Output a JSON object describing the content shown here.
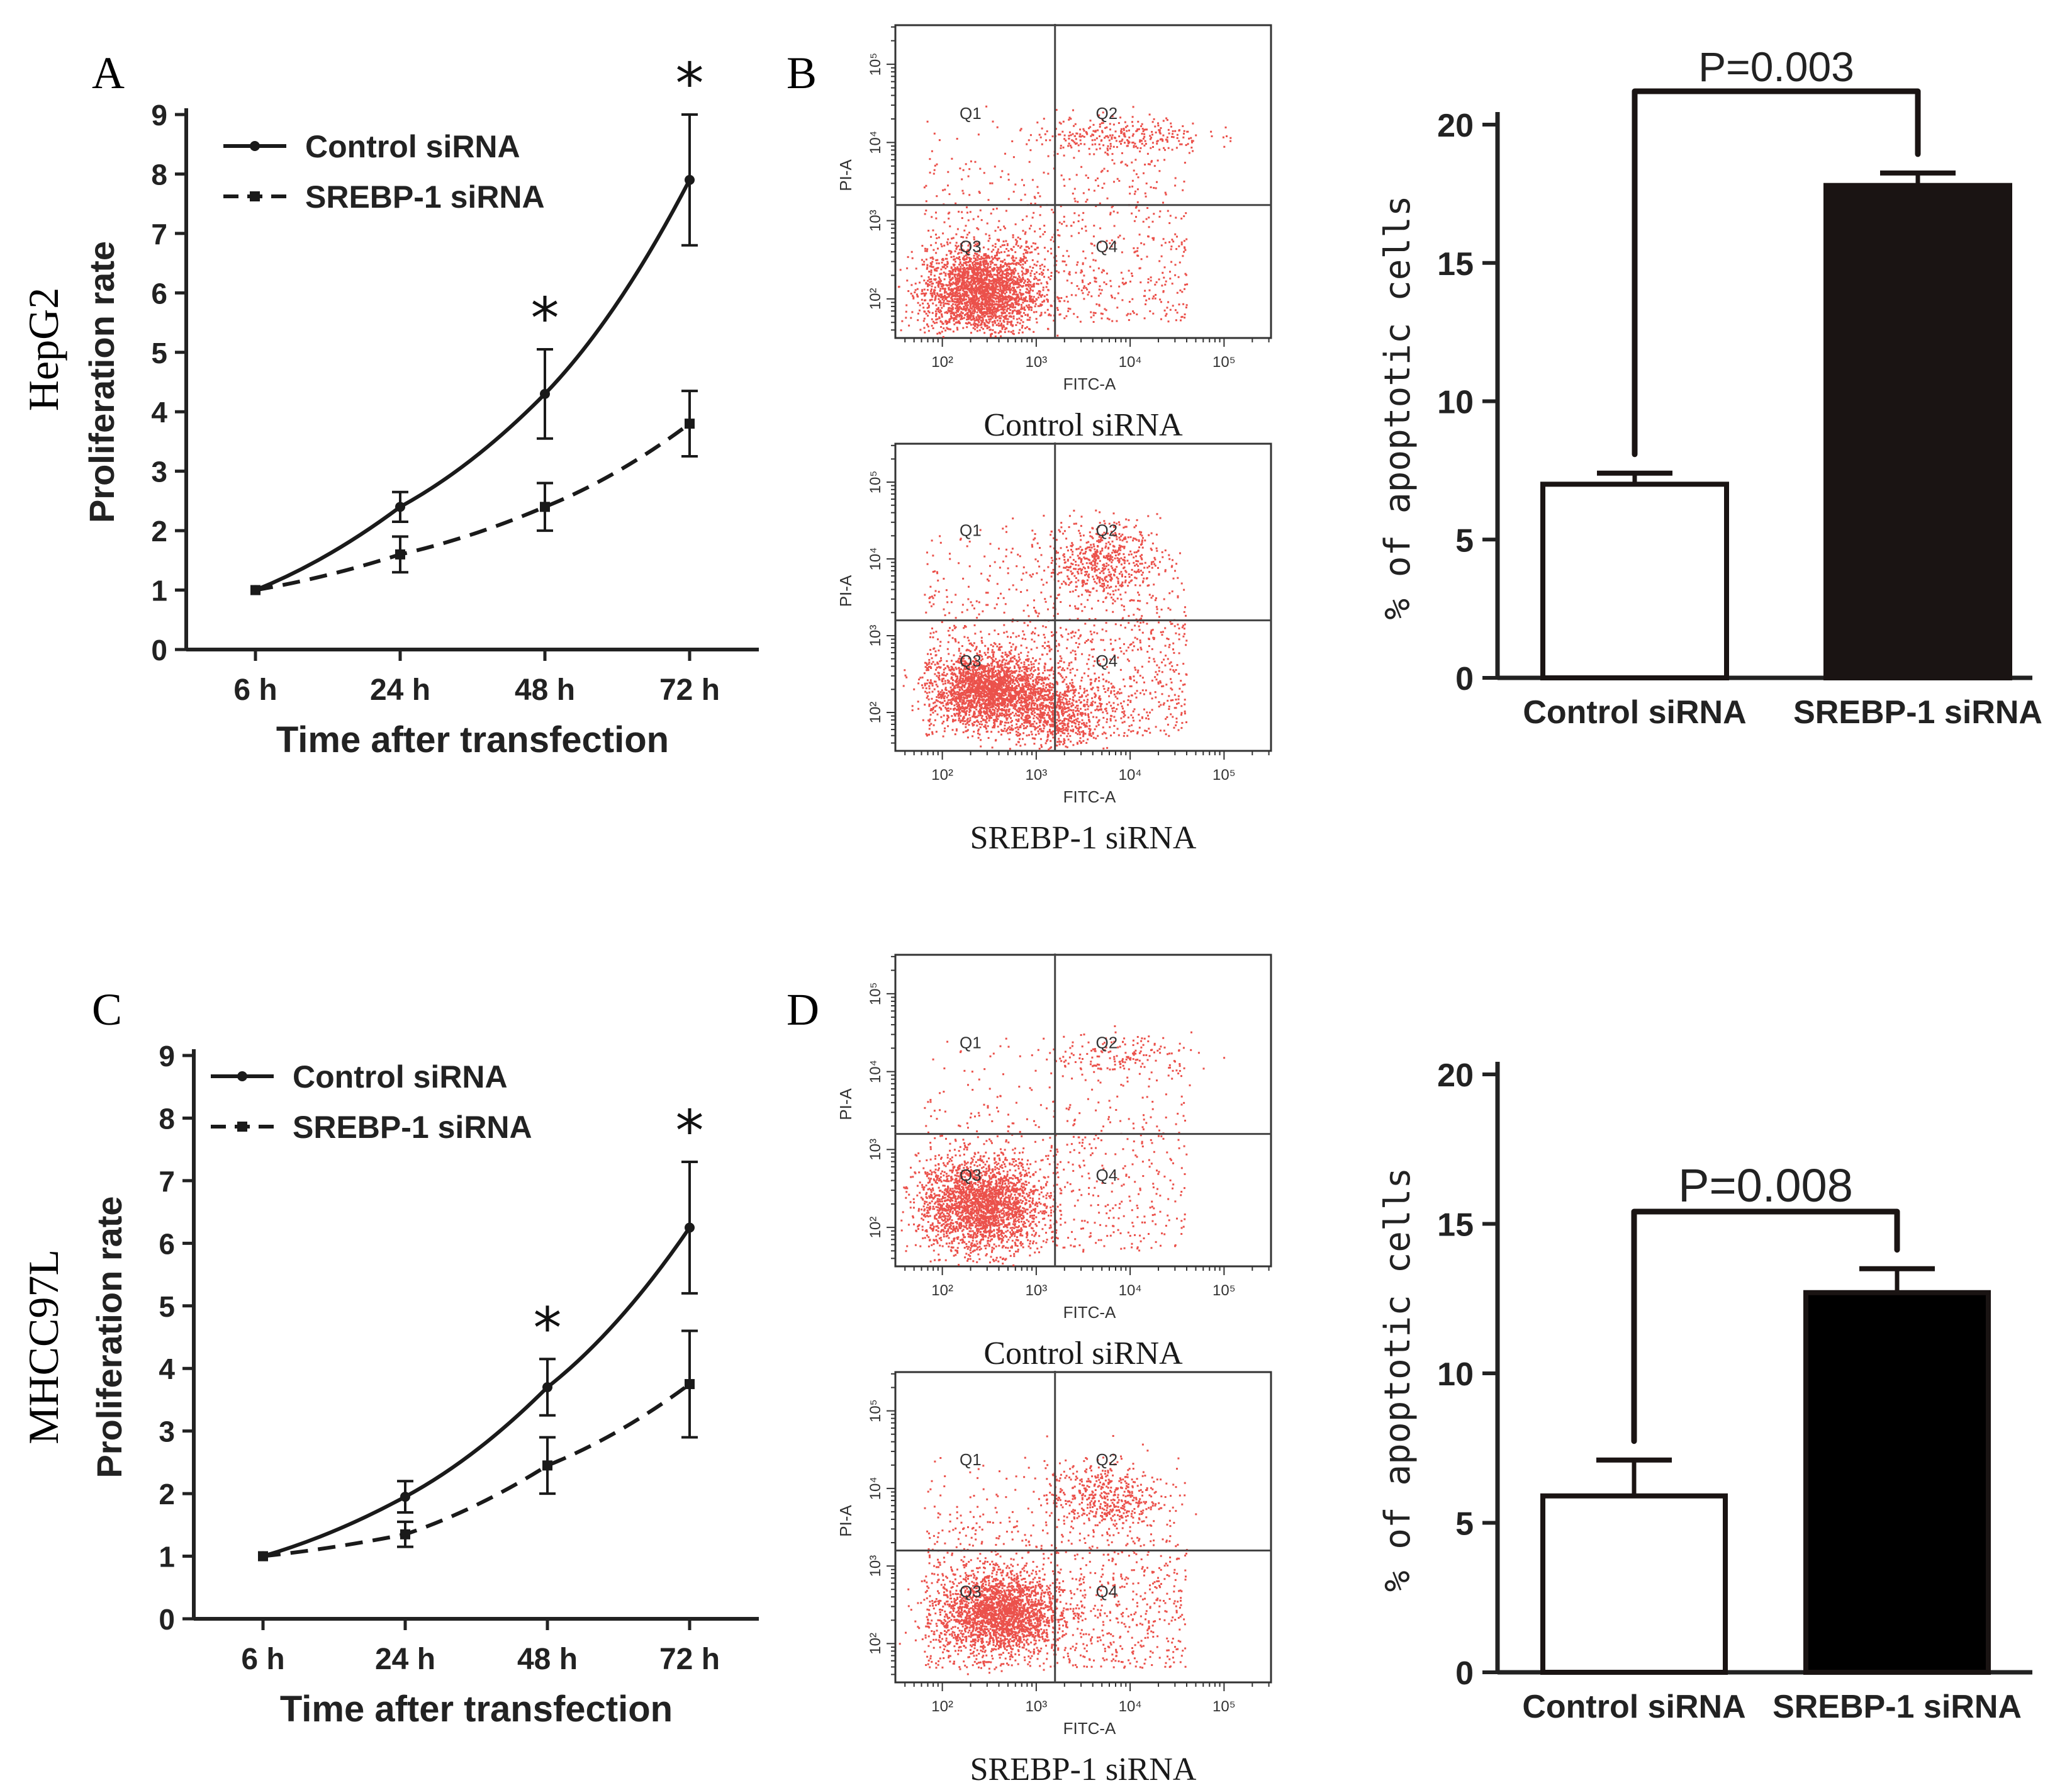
{
  "panel_labels": [
    "A",
    "B",
    "C",
    "D"
  ],
  "row_labels": [
    "HepG2",
    "MHCC97L"
  ],
  "chart_data": [
    {
      "type": "line",
      "panel": "A",
      "title": "",
      "xlabel": "Time after transfection",
      "ylabel": "Proliferation rate",
      "categories": [
        "6 h",
        "24 h",
        "48 h",
        "72 h"
      ],
      "ylim": [
        0,
        9
      ],
      "yticks": [
        "0",
        "1",
        "2",
        "3",
        "4",
        "5",
        "6",
        "7",
        "8",
        "9"
      ],
      "series": [
        {
          "name": "Control siRNA",
          "values": [
            1.0,
            2.4,
            4.3,
            7.9
          ],
          "errors": [
            0.0,
            0.25,
            0.75,
            1.1
          ],
          "dash": false
        },
        {
          "name": "SREBP-1 siRNA",
          "values": [
            1.0,
            1.6,
            2.4,
            3.8
          ],
          "errors": [
            0.0,
            0.3,
            0.4,
            0.55
          ],
          "dash": true
        }
      ],
      "annotations": [
        "*",
        "*"
      ],
      "legend": "top-left"
    },
    {
      "type": "line",
      "panel": "C",
      "title": "",
      "xlabel": "Time after transfection",
      "ylabel": "Proliferation rate",
      "categories": [
        "6 h",
        "24 h",
        "48 h",
        "72 h"
      ],
      "ylim": [
        0,
        9
      ],
      "yticks": [
        "0",
        "1",
        "2",
        "3",
        "4",
        "5",
        "6",
        "7",
        "8",
        "9"
      ],
      "series": [
        {
          "name": "Control siRNA",
          "values": [
            1.0,
            1.95,
            3.7,
            6.25
          ],
          "errors": [
            0.0,
            0.25,
            0.45,
            1.05
          ],
          "dash": false
        },
        {
          "name": "SREBP-1 siRNA",
          "values": [
            1.0,
            1.35,
            2.45,
            3.75
          ],
          "errors": [
            0.0,
            0.2,
            0.45,
            0.85
          ],
          "dash": true
        }
      ],
      "annotations": [
        "*",
        "*"
      ],
      "legend": "top-left"
    },
    {
      "type": "bar",
      "panel": "B",
      "title": "",
      "xlabel": "",
      "ylabel": "% of apoptotic cells",
      "categories": [
        "Control siRNA",
        "SREBP-1 siRNA"
      ],
      "values": [
        7.0,
        17.8
      ],
      "errors": [
        0.4,
        0.45
      ],
      "fills": [
        "#ffffff",
        "#1a1413"
      ],
      "ylim": [
        0,
        20
      ],
      "yticks": [
        "0",
        "5",
        "10",
        "15",
        "20"
      ],
      "significance": "P=0.003"
    },
    {
      "type": "bar",
      "panel": "D",
      "title": "",
      "xlabel": "",
      "ylabel": "% of apoptotic cells",
      "categories": [
        "Control siRNA",
        "SREBP-1 siRNA"
      ],
      "values": [
        5.9,
        12.7
      ],
      "errors": [
        1.2,
        0.8
      ],
      "fills": [
        "#ffffff",
        "#000000"
      ],
      "ylim": [
        0,
        20
      ],
      "yticks": [
        "0",
        "5",
        "10",
        "15",
        "20"
      ],
      "significance": "P=0.008"
    },
    {
      "type": "scatter",
      "panel": "B",
      "caption": "Control siRNA",
      "xlabel": "FITC-A",
      "ylabel": "PI-A",
      "xticks": [
        "10²",
        "10³",
        "10⁴",
        "10⁵"
      ],
      "yticks": [
        "10²",
        "10³",
        "10⁴",
        "10⁵"
      ],
      "quadrants": [
        "Q1",
        "Q2",
        "Q3",
        "Q4"
      ],
      "point_color": "#e8322c",
      "clusters": [
        {
          "cx": 2.4,
          "cy": 2.1,
          "sx": 0.3,
          "sy": 0.28,
          "n": 2400
        },
        {
          "cx": 3.9,
          "cy": 4.1,
          "sx": 0.45,
          "sy": 0.12,
          "n": 280
        }
      ],
      "background_points": 800
    },
    {
      "type": "scatter",
      "panel": "B",
      "caption": "SREBP-1 siRNA",
      "xlabel": "FITC-A",
      "ylabel": "PI-A",
      "xticks": [
        "10²",
        "10³",
        "10⁴",
        "10⁵"
      ],
      "yticks": [
        "10²",
        "10³",
        "10⁴",
        "10⁵"
      ],
      "quadrants": [
        "Q1",
        "Q2",
        "Q3",
        "Q4"
      ],
      "point_color": "#e8322c",
      "clusters": [
        {
          "cx": 2.5,
          "cy": 2.3,
          "sx": 0.3,
          "sy": 0.22,
          "n": 2000
        },
        {
          "cx": 3.2,
          "cy": 2.0,
          "sx": 0.28,
          "sy": 0.25,
          "n": 700
        },
        {
          "cx": 3.7,
          "cy": 4.0,
          "sx": 0.3,
          "sy": 0.25,
          "n": 550
        }
      ],
      "background_points": 1200
    },
    {
      "type": "scatter",
      "panel": "D",
      "caption": "Control siRNA",
      "xlabel": "FITC-A",
      "ylabel": "PI-A",
      "xticks": [
        "10²",
        "10³",
        "10⁴",
        "10⁵"
      ],
      "yticks": [
        "10²",
        "10³",
        "10⁴",
        "10⁵"
      ],
      "quadrants": [
        "Q1",
        "Q2",
        "Q3",
        "Q4"
      ],
      "point_color": "#e8322c",
      "clusters": [
        {
          "cx": 2.4,
          "cy": 2.3,
          "sx": 0.33,
          "sy": 0.3,
          "n": 2300
        },
        {
          "cx": 3.9,
          "cy": 4.2,
          "sx": 0.4,
          "sy": 0.15,
          "n": 180
        }
      ],
      "background_points": 600
    },
    {
      "type": "scatter",
      "panel": "D",
      "caption": "SREBP-1 siRNA",
      "xlabel": "FITC-A",
      "ylabel": "PI-A",
      "xticks": [
        "10²",
        "10³",
        "10⁴",
        "10⁵"
      ],
      "yticks": [
        "10²",
        "10³",
        "10⁴",
        "10⁵"
      ],
      "quadrants": [
        "Q1",
        "Q2",
        "Q3",
        "Q4"
      ],
      "point_color": "#e8322c",
      "clusters": [
        {
          "cx": 2.6,
          "cy": 2.4,
          "sx": 0.32,
          "sy": 0.26,
          "n": 2100
        },
        {
          "cx": 3.7,
          "cy": 3.9,
          "sx": 0.3,
          "sy": 0.22,
          "n": 450
        }
      ],
      "background_points": 1100
    }
  ]
}
